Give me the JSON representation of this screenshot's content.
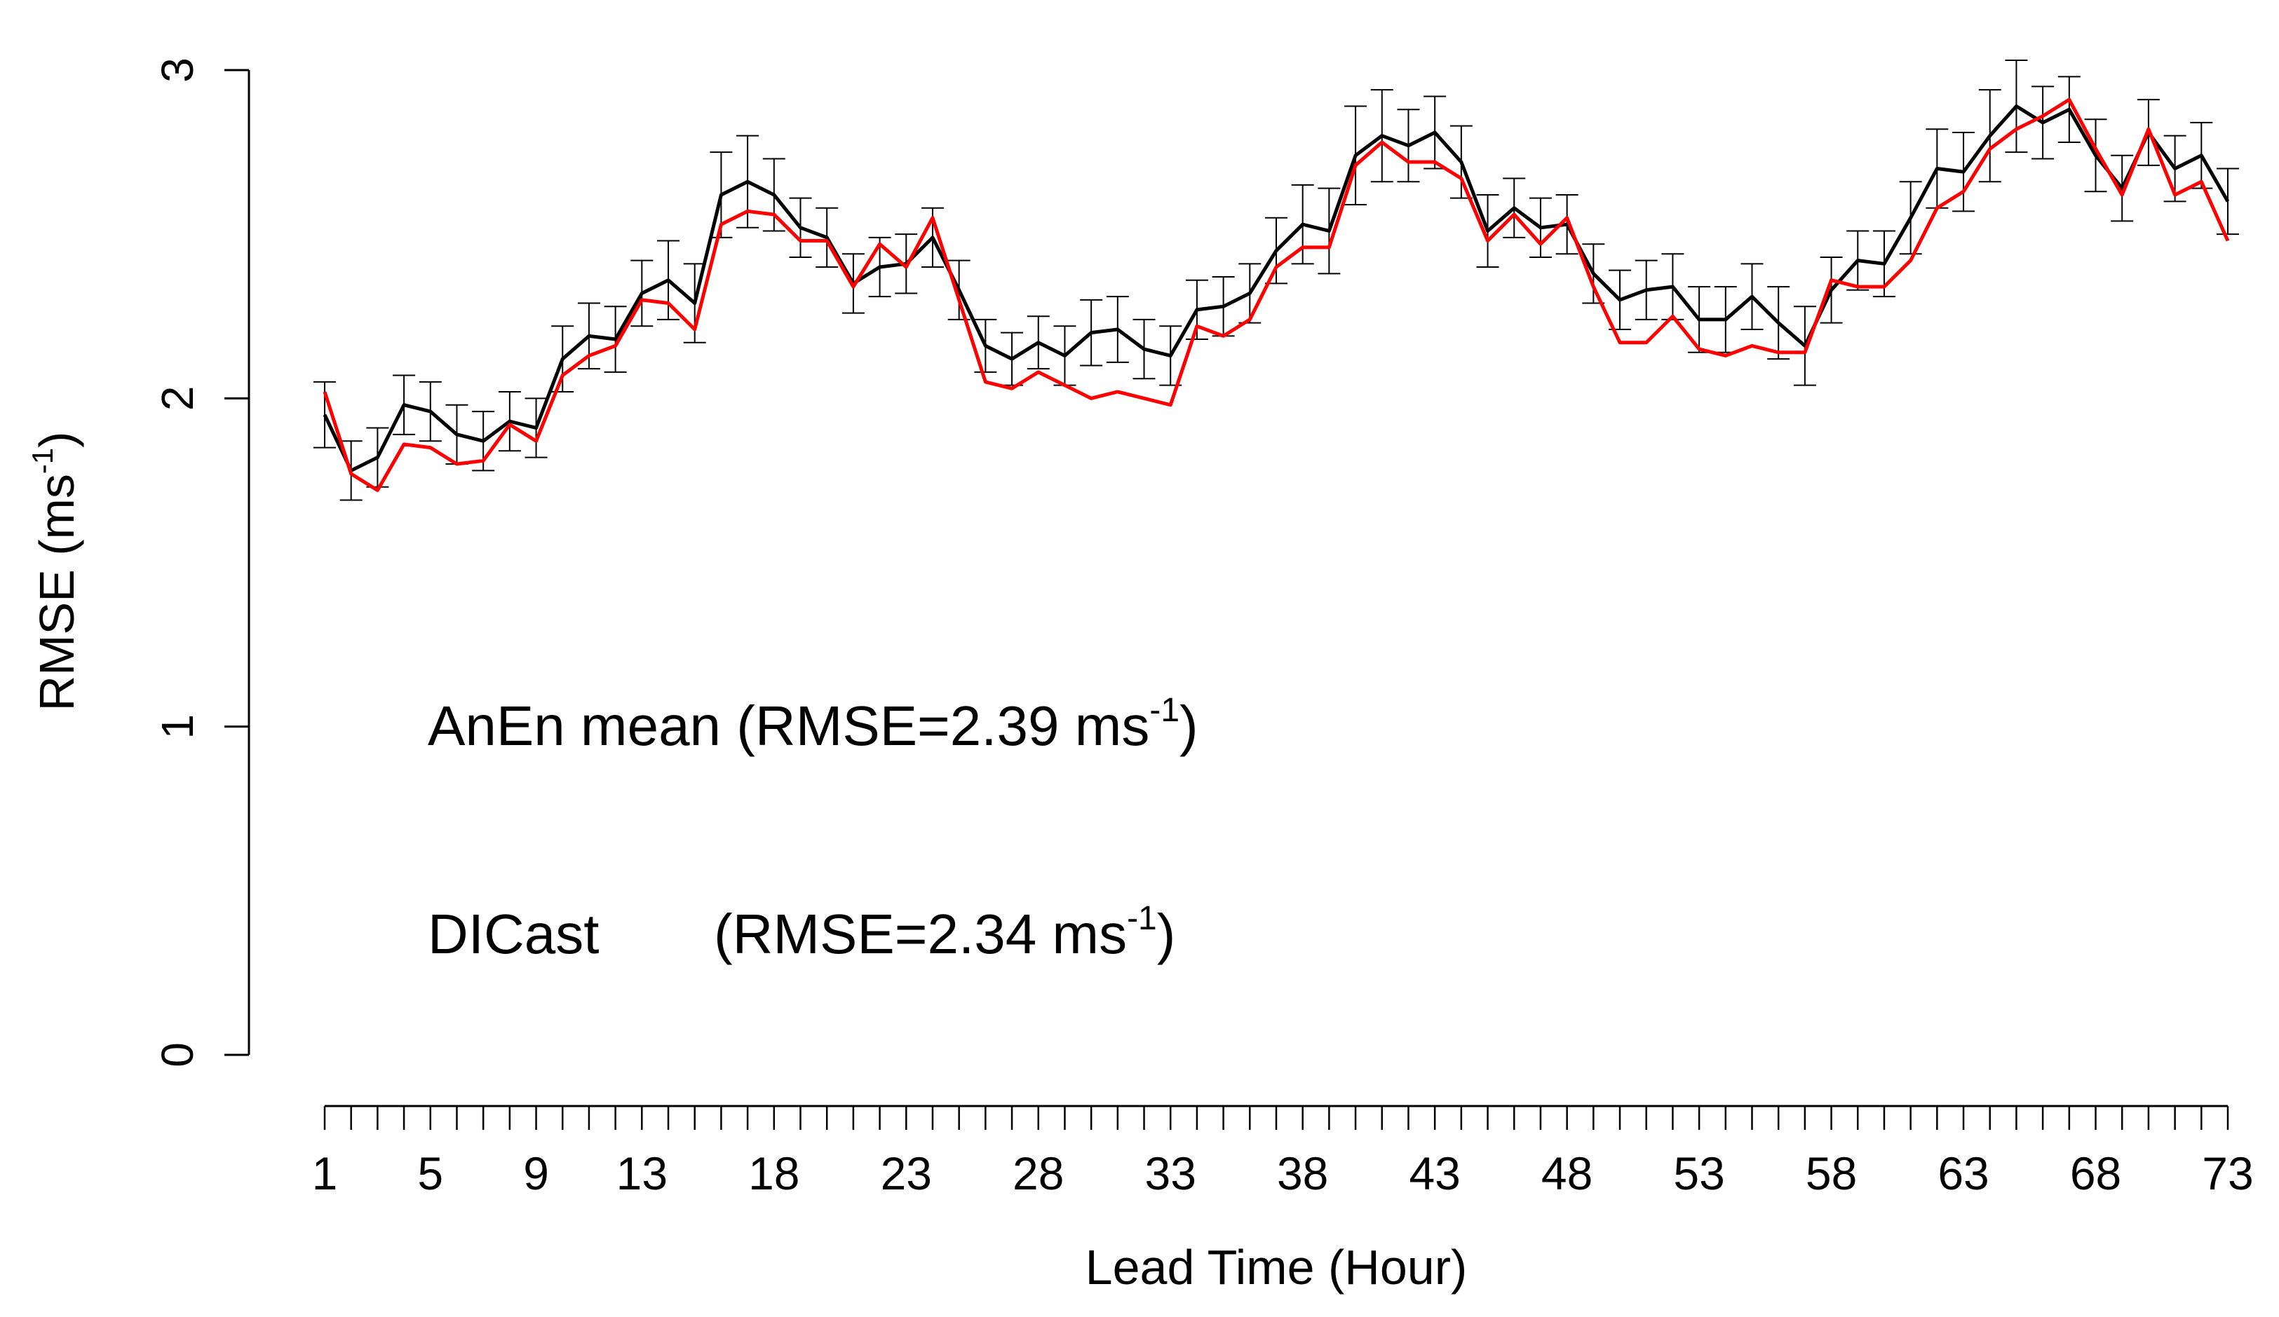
{
  "chart_data": {
    "type": "line",
    "title": "",
    "xlabel": "Lead Time (Hour)",
    "ylabel": "RMSE (ms",
    "ylabel_sup": "-1",
    "ylabel_close": ")",
    "xlim": [
      1,
      73
    ],
    "ylim": [
      0,
      3
    ],
    "yticks": [
      0,
      1,
      2,
      3
    ],
    "ytick_labels": [
      "0",
      "1",
      "2",
      "3"
    ],
    "xtick_labels": [
      1,
      5,
      9,
      13,
      18,
      23,
      28,
      33,
      38,
      43,
      48,
      53,
      58,
      63,
      68,
      73
    ],
    "x": [
      1,
      2,
      3,
      4,
      5,
      6,
      7,
      8,
      9,
      10,
      11,
      12,
      13,
      14,
      15,
      16,
      17,
      18,
      19,
      20,
      21,
      22,
      23,
      24,
      25,
      26,
      27,
      28,
      29,
      30,
      31,
      32,
      33,
      34,
      35,
      36,
      37,
      38,
      39,
      40,
      41,
      42,
      43,
      44,
      45,
      46,
      47,
      48,
      49,
      50,
      51,
      52,
      53,
      54,
      55,
      56,
      57,
      58,
      59,
      60,
      61,
      62,
      63,
      64,
      65,
      66,
      67,
      68,
      69,
      70,
      71,
      72,
      73
    ],
    "series": [
      {
        "name": "AnEn mean",
        "color": "#000000",
        "values": [
          1.95,
          1.78,
          1.82,
          1.98,
          1.96,
          1.89,
          1.87,
          1.93,
          1.91,
          2.12,
          2.19,
          2.18,
          2.32,
          2.36,
          2.29,
          2.62,
          2.66,
          2.62,
          2.52,
          2.49,
          2.35,
          2.4,
          2.41,
          2.49,
          2.33,
          2.16,
          2.12,
          2.17,
          2.13,
          2.2,
          2.21,
          2.15,
          2.13,
          2.27,
          2.28,
          2.32,
          2.45,
          2.53,
          2.51,
          2.74,
          2.8,
          2.77,
          2.81,
          2.72,
          2.51,
          2.58,
          2.52,
          2.53,
          2.38,
          2.3,
          2.33,
          2.34,
          2.24,
          2.24,
          2.31,
          2.23,
          2.16,
          2.33,
          2.42,
          2.41,
          2.55,
          2.7,
          2.69,
          2.8,
          2.89,
          2.84,
          2.88,
          2.74,
          2.64,
          2.81,
          2.7,
          2.74,
          2.6
        ],
        "errors": [
          0.1,
          0.09,
          0.09,
          0.09,
          0.09,
          0.09,
          0.09,
          0.09,
          0.09,
          0.1,
          0.1,
          0.1,
          0.1,
          0.12,
          0.12,
          0.13,
          0.14,
          0.11,
          0.09,
          0.09,
          0.09,
          0.09,
          0.09,
          0.09,
          0.09,
          0.08,
          0.08,
          0.08,
          0.09,
          0.1,
          0.1,
          0.09,
          0.09,
          0.09,
          0.09,
          0.09,
          0.1,
          0.12,
          0.13,
          0.15,
          0.14,
          0.11,
          0.11,
          0.11,
          0.11,
          0.09,
          0.09,
          0.09,
          0.09,
          0.09,
          0.09,
          0.1,
          0.1,
          0.1,
          0.1,
          0.11,
          0.12,
          0.1,
          0.09,
          0.1,
          0.11,
          0.12,
          0.12,
          0.14,
          0.14,
          0.11,
          0.1,
          0.11,
          0.1,
          0.1,
          0.1,
          0.1,
          0.1
        ]
      },
      {
        "name": "DICast",
        "color": "#ff0000",
        "values": [
          2.02,
          1.77,
          1.72,
          1.86,
          1.85,
          1.8,
          1.81,
          1.92,
          1.87,
          2.07,
          2.13,
          2.16,
          2.3,
          2.29,
          2.21,
          2.53,
          2.57,
          2.56,
          2.48,
          2.48,
          2.34,
          2.47,
          2.4,
          2.55,
          2.3,
          2.05,
          2.03,
          2.08,
          2.04,
          2.0,
          2.02,
          2.0,
          1.98,
          2.22,
          2.19,
          2.24,
          2.4,
          2.46,
          2.46,
          2.71,
          2.78,
          2.72,
          2.72,
          2.67,
          2.48,
          2.56,
          2.47,
          2.55,
          2.34,
          2.17,
          2.17,
          2.25,
          2.15,
          2.13,
          2.16,
          2.14,
          2.14,
          2.36,
          2.34,
          2.34,
          2.42,
          2.58,
          2.63,
          2.76,
          2.82,
          2.86,
          2.91,
          2.76,
          2.62,
          2.82,
          2.62,
          2.66,
          2.48
        ]
      }
    ],
    "annotations": [
      {
        "label": "AnEn mean",
        "text": "(RMSE=2.39 ms",
        "sup": "-1",
        "close": ")",
        "color": "#000000"
      },
      {
        "label": "DICast",
        "text": "(RMSE=2.34 ms",
        "sup": "-1",
        "close": ")",
        "color": "#ff0000"
      }
    ]
  }
}
